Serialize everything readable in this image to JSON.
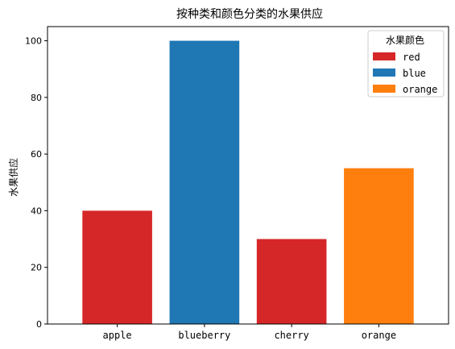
{
  "chart_data": {
    "type": "bar",
    "title": "按种类和颜色分类的水果供应",
    "xlabel": "",
    "ylabel": "水果供应",
    "categories": [
      "apple",
      "blueberry",
      "cherry",
      "orange"
    ],
    "values": [
      40,
      100,
      30,
      55
    ],
    "bar_colors": [
      "#d62728",
      "#1f77b4",
      "#d62728",
      "#ff7f0e"
    ],
    "ylim": [
      0,
      105
    ],
    "yticks": [
      0,
      20,
      40,
      60,
      80,
      100
    ],
    "grid": false,
    "legend": {
      "title": "水果颜色",
      "placement": "top-right",
      "entries": [
        {
          "label": "red",
          "color": "#d62728"
        },
        {
          "label": "blue",
          "color": "#1f77b4"
        },
        {
          "label": "orange",
          "color": "#ff7f0e"
        }
      ]
    }
  }
}
